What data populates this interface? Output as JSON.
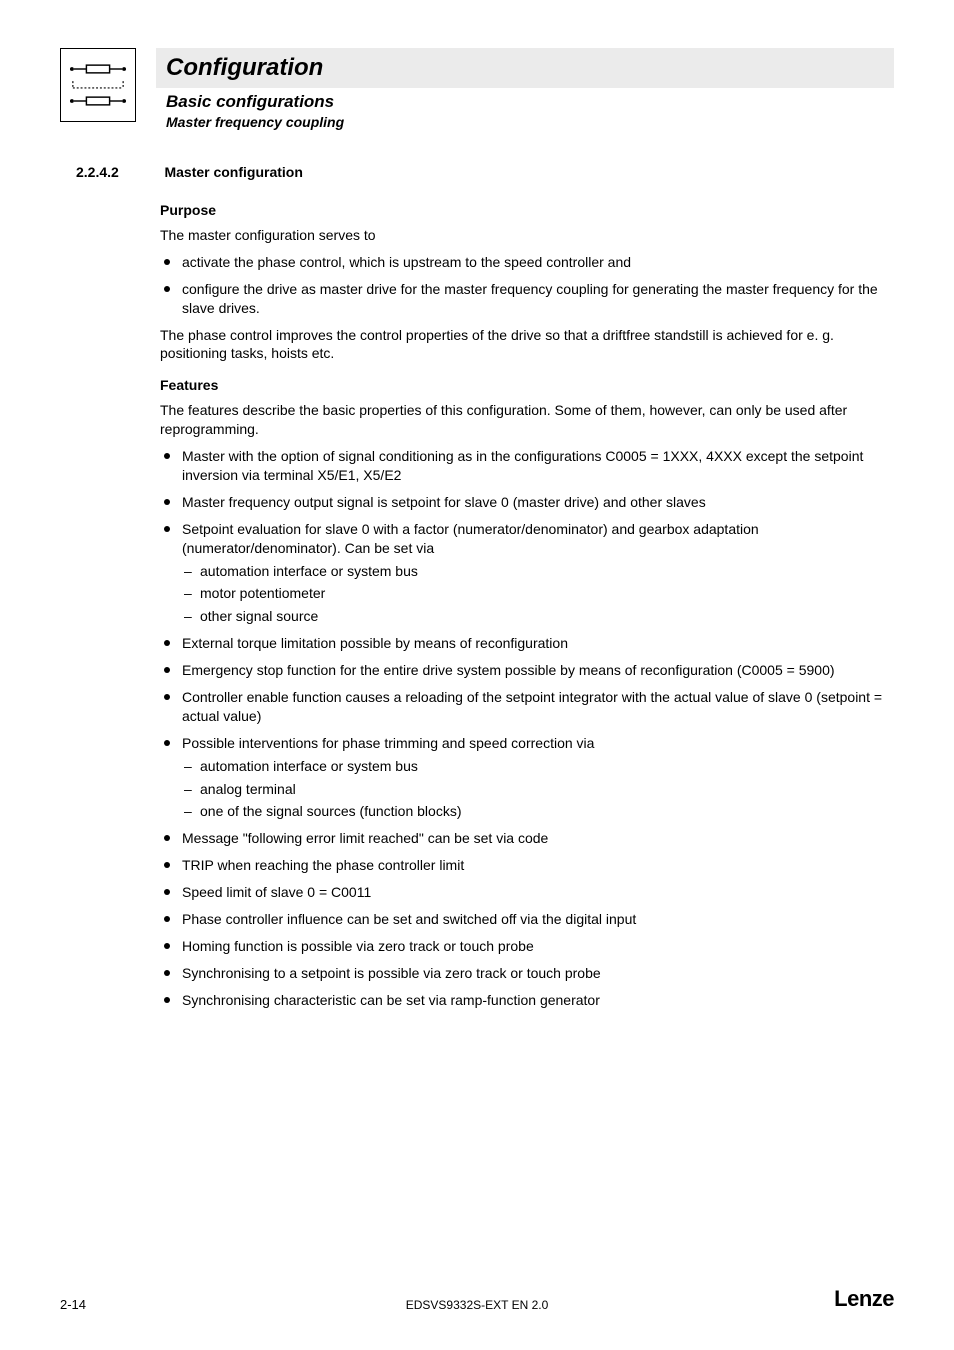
{
  "header": {
    "title": "Configuration",
    "subtitle1": "Basic configurations",
    "subtitle2": "Master frequency coupling"
  },
  "section": {
    "number": "2.2.4.2",
    "title": "Master configuration"
  },
  "purpose": {
    "heading": "Purpose",
    "intro": "The master configuration serves to",
    "bullets": [
      "activate the phase control, which is upstream to the speed controller and",
      "configure the drive as master drive for the master frequency coupling for generating the master frequency for the slave drives."
    ],
    "para2": "The phase control improves the control properties of the drive so that a driftfree standstill is achieved for e. g. positioning tasks, hoists etc."
  },
  "features": {
    "heading": "Features",
    "intro": "The features describe the basic properties of this configuration. Some of them, however, can only be used after reprogramming.",
    "items": [
      {
        "text": "Master with the option of signal conditioning as in the configurations C0005 = 1XXX, 4XXX except the setpoint inversion via terminal X5/E1, X5/E2"
      },
      {
        "text": "Master frequency output signal is setpoint for slave 0 (master drive) and other slaves"
      },
      {
        "text": "Setpoint evaluation for slave 0 with a factor (numerator/denominator) and gearbox adaptation (numerator/denominator). Can be set via",
        "sub": [
          "automation interface or system bus",
          "motor potentiometer",
          "other signal source"
        ]
      },
      {
        "text": "External torque limitation possible by means of reconfiguration"
      },
      {
        "text": "Emergency stop function for the entire drive system possible by means of reconfiguration (C0005 = 5900)"
      },
      {
        "text": "Controller enable function causes a reloading of the setpoint integrator with the actual value of slave 0 (setpoint = actual value)"
      },
      {
        "text": "Possible interventions for phase trimming and speed correction via",
        "sub": [
          "automation interface or system bus",
          "analog terminal",
          "one of the signal sources (function blocks)"
        ]
      },
      {
        "text": "Message \"following error limit reached\" can be set via code"
      },
      {
        "text": "TRIP when reaching the phase controller limit"
      },
      {
        "text": "Speed limit of slave 0 = C0011"
      },
      {
        "text": "Phase controller influence can be set and switched off via the digital input"
      },
      {
        "text": "Homing function is possible via zero track or touch probe"
      },
      {
        "text": "Synchronising to a setpoint is possible via zero track or touch probe"
      },
      {
        "text": "Synchronising characteristic can be set via ramp-function generator"
      }
    ]
  },
  "footer": {
    "page": "2-14",
    "docid": "EDSVS9332S-EXT EN 2.0",
    "brand": "Lenze"
  }
}
